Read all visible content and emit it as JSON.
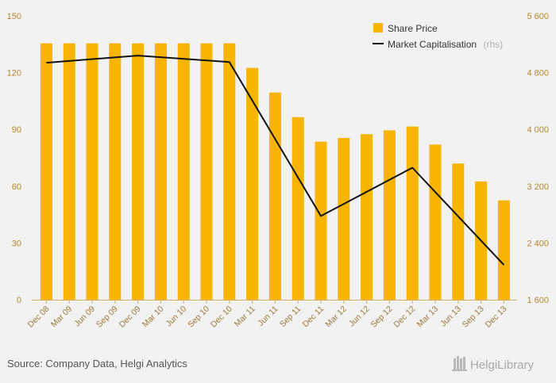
{
  "chart_data": {
    "type": "bar",
    "categories": [
      "Dec 08",
      "Mar 09",
      "Jun 09",
      "Sep 09",
      "Dec 09",
      "Mar 10",
      "Jun 10",
      "Sep 10",
      "Dec 10",
      "Mar 11",
      "Jun 11",
      "Sep 11",
      "Dec 11",
      "Mar 12",
      "Jun 12",
      "Sep 12",
      "Dec 12",
      "Mar 13",
      "Jun 13",
      "Sep 13",
      "Dec 13"
    ],
    "series": [
      {
        "name": "Share Price",
        "type": "bar",
        "axis": "left",
        "color": "#f7b400",
        "values": [
          135.5,
          135.5,
          135.5,
          135.5,
          135.5,
          135.5,
          135.5,
          135.5,
          135.5,
          122.5,
          109.5,
          96.5,
          83.5,
          85.5,
          87.5,
          89.5,
          91.5,
          82,
          72,
          62.5,
          52.5
        ]
      },
      {
        "name": "Market Capitalisation",
        "legend_suffix": "(rhs)",
        "type": "line",
        "axis": "right",
        "color": "#111111",
        "values": [
          4940,
          null,
          null,
          null,
          5040,
          null,
          null,
          null,
          4950,
          null,
          null,
          null,
          2780,
          null,
          null,
          null,
          3460,
          null,
          null,
          null,
          2090
        ]
      }
    ],
    "y_left": {
      "ylim": [
        0,
        150
      ],
      "ticks": [
        "0",
        "30",
        "60",
        "90",
        "120",
        "150"
      ],
      "tick_values": [
        0,
        30,
        60,
        90,
        120,
        150
      ]
    },
    "y_right": {
      "ylim": [
        1600,
        5600
      ],
      "ticks": [
        "1 600",
        "2 400",
        "3 200",
        "4 000",
        "4 800",
        "5 600"
      ],
      "tick_values": [
        1600,
        2400,
        3200,
        4000,
        4800,
        5600
      ]
    },
    "grid": false,
    "legend_position": "top-right"
  },
  "footer": {
    "source": "Source: Company Data, Helgi Analytics",
    "brand": "HelgiLibrary"
  }
}
